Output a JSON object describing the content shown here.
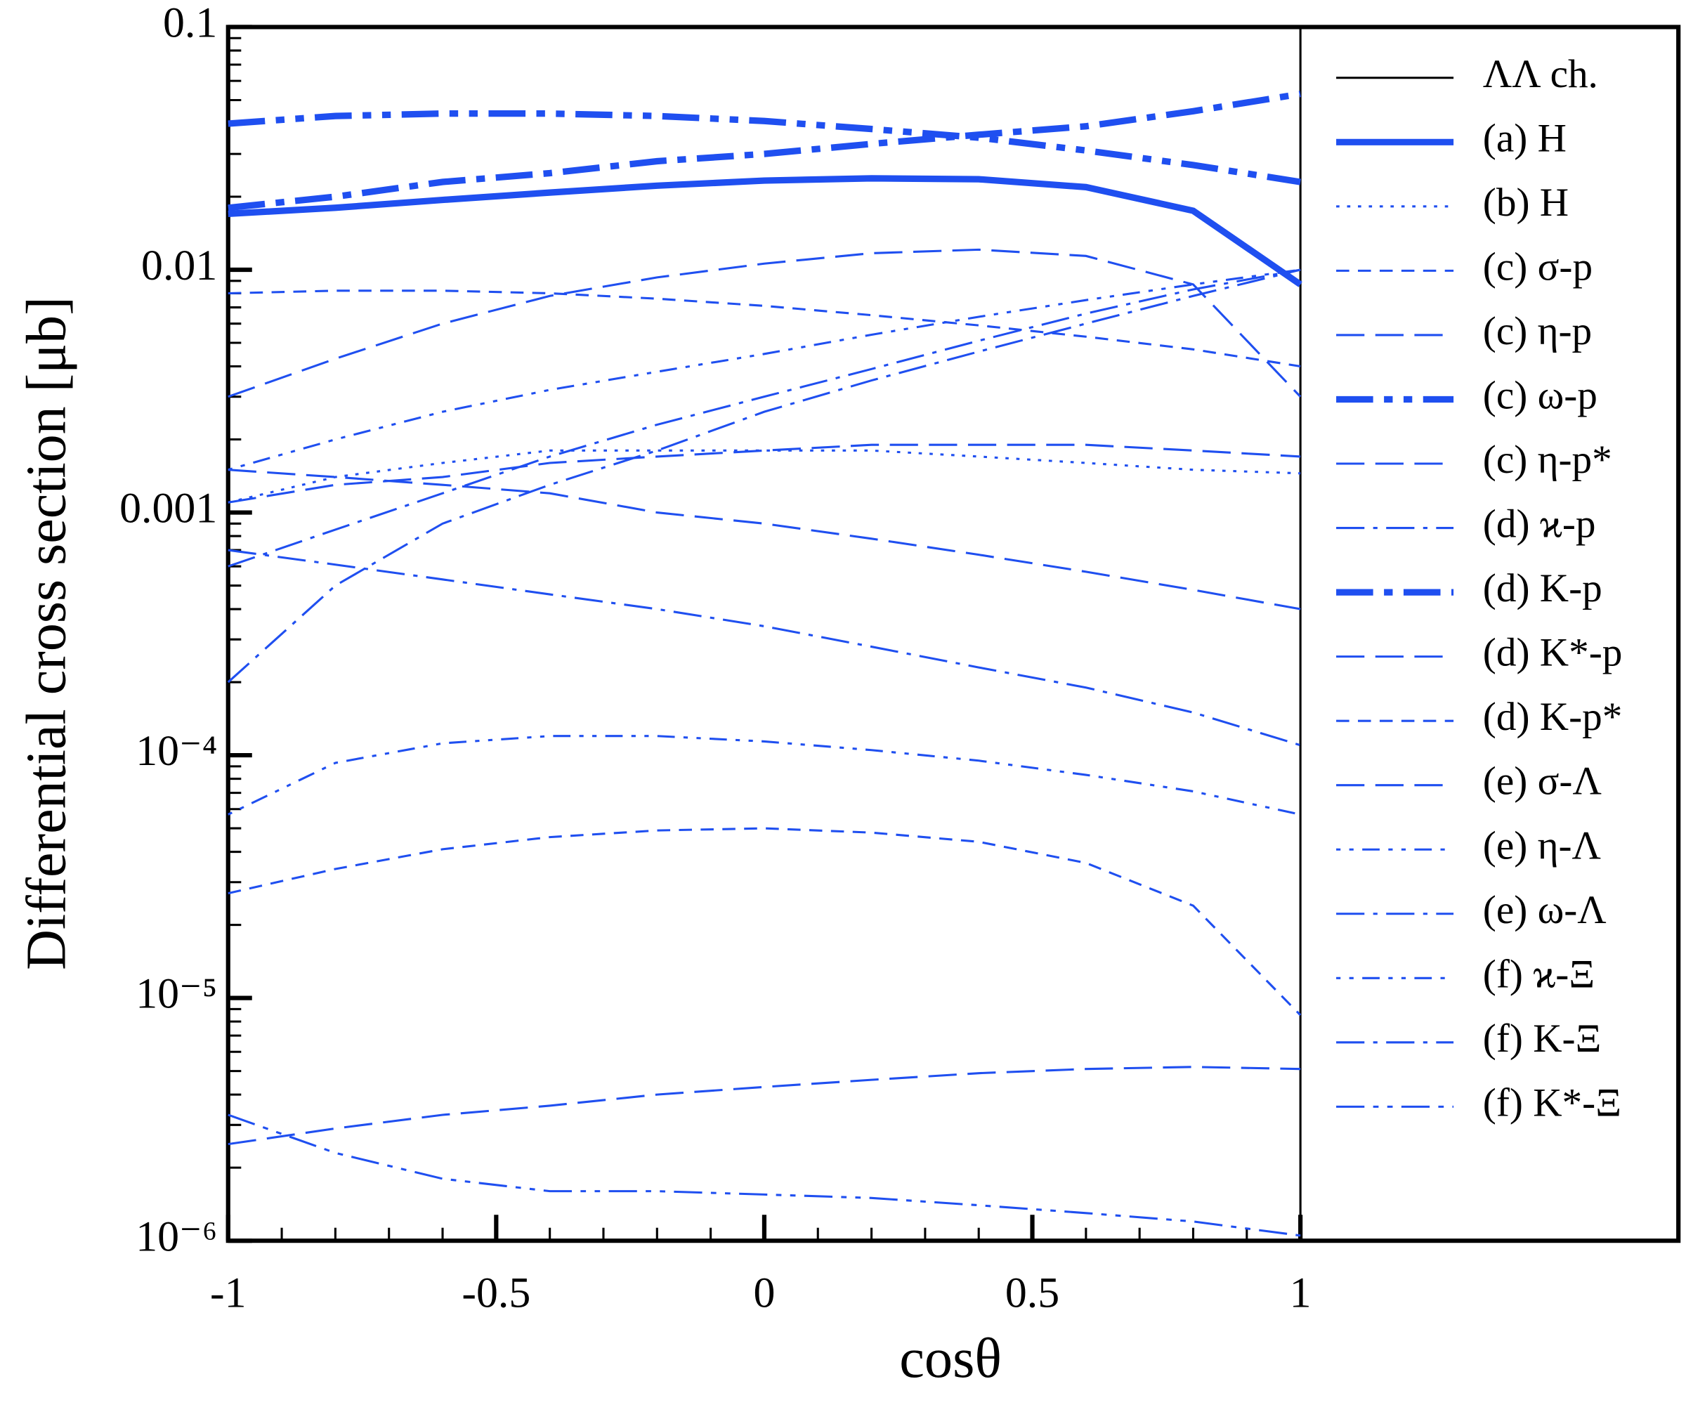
{
  "chart_data": {
    "type": "line",
    "x_label": "cosθ",
    "y_label": "Differential cross section [μb]",
    "xlim": [
      -1,
      1.705
    ],
    "xticks": [
      -1,
      -0.5,
      0,
      0.5,
      1
    ],
    "ylim": [
      1e-06,
      0.1
    ],
    "yticks": [
      0.1,
      0.01,
      0.001,
      {
        "value": 0.0001,
        "label": "10⁻⁴"
      },
      {
        "value": 1e-05,
        "label": "10⁻⁵"
      },
      {
        "value": 1e-06,
        "label": "10⁻⁶"
      }
    ],
    "log_y": true,
    "legend": "right",
    "threshold": {
      "name": "ΛΛ ch.",
      "x": 1,
      "color": "#000000"
    },
    "x": [
      -1,
      -0.8,
      -0.6,
      -0.4,
      -0.2,
      0,
      0.2,
      0.4,
      0.6,
      0.8,
      1
    ],
    "series": [
      {
        "name": "(a) H",
        "color": "#1f4ff0",
        "linestyle": "solid",
        "linewidth": 6,
        "values": [
          0.017,
          0.018,
          0.0194,
          0.0208,
          0.0222,
          0.0233,
          0.0238,
          0.0236,
          0.0219,
          0.0175,
          0.0087
        ]
      },
      {
        "name": "(b) H",
        "color": "#1f4ff0",
        "linestyle": "dotted",
        "linewidth": 2,
        "values": [
          0.0011,
          0.0014,
          0.0016,
          0.0018,
          0.0018,
          0.0018,
          0.0018,
          0.0017,
          0.0016,
          0.0015,
          0.00145
        ]
      },
      {
        "name": "(c) σ-p",
        "color": "#1f4ff0",
        "linestyle": "dashed",
        "linewidth": 2,
        "values": [
          0.008,
          0.0082,
          0.0082,
          0.008,
          0.0076,
          0.0071,
          0.0065,
          0.0059,
          0.0053,
          0.0047,
          0.004
        ]
      },
      {
        "name": "(c) η-p",
        "color": "#1f4ff0",
        "linestyle": "longdash",
        "linewidth": 2,
        "values": [
          0.003,
          0.0043,
          0.006,
          0.0078,
          0.0093,
          0.0106,
          0.0117,
          0.0121,
          0.0114,
          0.0087,
          0.003
        ]
      },
      {
        "name": "(c) ω-p",
        "color": "#1f4ff0",
        "linestyle": "dashdotdot",
        "linewidth": 6,
        "values": [
          0.04,
          0.043,
          0.044,
          0.044,
          0.043,
          0.041,
          0.038,
          0.035,
          0.031,
          0.027,
          0.023
        ]
      },
      {
        "name": "(c) η-p*",
        "color": "#1f4ff0",
        "linestyle": "longdash",
        "linewidth": 2,
        "values": [
          0.0011,
          0.0013,
          0.0014,
          0.0016,
          0.0017,
          0.0018,
          0.0019,
          0.0019,
          0.0019,
          0.0018,
          0.0017
        ]
      },
      {
        "name": "(d) ϰ-p",
        "color": "#1f4ff0",
        "linestyle": "dashdot",
        "linewidth": 2,
        "values": [
          0.0002,
          0.0005,
          0.0009,
          0.0013,
          0.0018,
          0.0026,
          0.0035,
          0.0046,
          0.006,
          0.0078,
          0.01
        ]
      },
      {
        "name": "(d) K-p",
        "color": "#1f4ff0",
        "linestyle": "dashdot",
        "linewidth": 6,
        "values": [
          0.018,
          0.02,
          0.023,
          0.025,
          0.028,
          0.03,
          0.033,
          0.036,
          0.039,
          0.045,
          0.053
        ]
      },
      {
        "name": "(d) K*-p",
        "color": "#1f4ff0",
        "linestyle": "longdash",
        "linewidth": 2,
        "values": [
          0.0015,
          0.0014,
          0.0013,
          0.0012,
          0.001,
          0.0009,
          0.00078,
          0.00067,
          0.00057,
          0.00048,
          0.0004
        ]
      },
      {
        "name": "(d) K-p*",
        "color": "#1f4ff0",
        "linestyle": "dashed",
        "linewidth": 2,
        "values": [
          2.7e-05,
          3.4e-05,
          4.1e-05,
          4.6e-05,
          4.9e-05,
          5e-05,
          4.8e-05,
          4.4e-05,
          3.6e-05,
          2.4e-05,
          8.5e-06
        ]
      },
      {
        "name": "(e) σ-Λ",
        "color": "#1f4ff0",
        "linestyle": "longdash",
        "linewidth": 2,
        "values": [
          2.5e-06,
          2.9e-06,
          3.3e-06,
          3.6e-06,
          4e-06,
          4.3e-06,
          4.6e-06,
          4.9e-06,
          5.1e-06,
          5.2e-06,
          5.1e-06
        ]
      },
      {
        "name": "(e) η-Λ",
        "color": "#1f4ff0",
        "linestyle": "dotdash",
        "linewidth": 2,
        "values": [
          0.0015,
          0.002,
          0.0026,
          0.0032,
          0.0038,
          0.0045,
          0.0054,
          0.0064,
          0.0075,
          0.0087,
          0.01
        ]
      },
      {
        "name": "(e) ω-Λ",
        "color": "#1f4ff0",
        "linestyle": "dashdot",
        "linewidth": 2,
        "values": [
          0.0007,
          0.00061,
          0.00053,
          0.00046,
          0.0004,
          0.00034,
          0.00028,
          0.00023,
          0.00019,
          0.00015,
          0.00011
        ]
      },
      {
        "name": "(f) ϰ-Ξ",
        "color": "#1f4ff0",
        "linestyle": "dotdash",
        "linewidth": 2,
        "values": [
          5.7e-05,
          9.3e-05,
          0.000112,
          0.00012,
          0.00012,
          0.000114,
          0.000105,
          9.5e-05,
          8.3e-05,
          7.1e-05,
          5.7e-05
        ]
      },
      {
        "name": "(f) K-Ξ",
        "color": "#1f4ff0",
        "linestyle": "dashdot",
        "linewidth": 2,
        "values": [
          0.0006,
          0.00085,
          0.0012,
          0.0017,
          0.0023,
          0.003,
          0.0039,
          0.0051,
          0.0066,
          0.0083,
          0.01
        ]
      },
      {
        "name": "(f) K*-Ξ",
        "color": "#1f4ff0",
        "linestyle": "dashdotdot",
        "linewidth": 2,
        "values": [
          3.3e-06,
          2.3e-06,
          1.8e-06,
          1.6e-06,
          1.6e-06,
          1.55e-06,
          1.5e-06,
          1.4e-06,
          1.3e-06,
          1.2e-06,
          1.05e-06
        ]
      }
    ]
  }
}
